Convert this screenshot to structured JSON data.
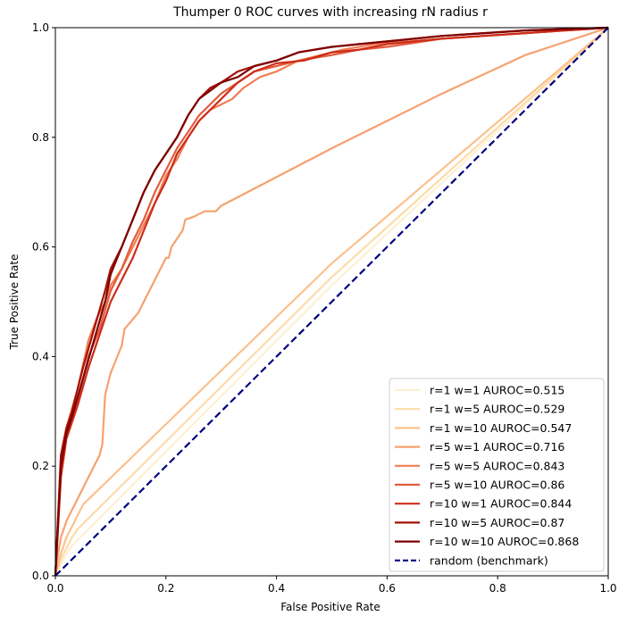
{
  "chart_data": {
    "type": "line",
    "title": "Thumper 0 ROC curves with increasing rN radius r",
    "xlabel": "False Positive Rate",
    "ylabel": "True Positive Rate",
    "xlim": [
      0.0,
      1.0
    ],
    "ylim": [
      0.0,
      1.0
    ],
    "x_ticks": [
      "0.0",
      "0.2",
      "0.4",
      "0.6",
      "0.8",
      "1.0"
    ],
    "y_ticks": [
      "0.0",
      "0.2",
      "0.4",
      "0.6",
      "0.8",
      "1.0"
    ],
    "grid": false,
    "legend_position": "lower-right",
    "series": [
      {
        "name": "r=1 w=1 AUROC=0.515",
        "color": "#fff0d4",
        "points": [
          [
            0,
            0
          ],
          [
            0.01,
            0.02
          ],
          [
            0.02,
            0.04
          ],
          [
            0.03,
            0.055
          ],
          [
            0.04,
            0.065
          ],
          [
            0.5,
            0.53
          ],
          [
            1,
            1
          ]
        ]
      },
      {
        "name": "r=1 w=5 AUROC=0.529",
        "color": "#fcdca8",
        "points": [
          [
            0,
            0
          ],
          [
            0.01,
            0.03
          ],
          [
            0.02,
            0.05
          ],
          [
            0.03,
            0.07
          ],
          [
            0.04,
            0.085
          ],
          [
            0.5,
            0.545
          ],
          [
            1,
            1
          ]
        ]
      },
      {
        "name": "r=1 w=10 AUROC=0.547",
        "color": "#fbc18d",
        "points": [
          [
            0,
            0
          ],
          [
            0.01,
            0.04
          ],
          [
            0.02,
            0.07
          ],
          [
            0.03,
            0.09
          ],
          [
            0.05,
            0.13
          ],
          [
            0.5,
            0.57
          ],
          [
            1,
            1
          ]
        ]
      },
      {
        "name": "r=5 w=1 AUROC=0.716",
        "color": "#f6a16f",
        "points": [
          [
            0,
            0
          ],
          [
            0.005,
            0.04
          ],
          [
            0.01,
            0.07
          ],
          [
            0.02,
            0.1
          ],
          [
            0.04,
            0.14
          ],
          [
            0.06,
            0.18
          ],
          [
            0.08,
            0.22
          ],
          [
            0.085,
            0.24
          ],
          [
            0.09,
            0.33
          ],
          [
            0.1,
            0.37
          ],
          [
            0.12,
            0.42
          ],
          [
            0.125,
            0.45
          ],
          [
            0.15,
            0.48
          ],
          [
            0.17,
            0.52
          ],
          [
            0.19,
            0.56
          ],
          [
            0.2,
            0.58
          ],
          [
            0.205,
            0.58
          ],
          [
            0.21,
            0.6
          ],
          [
            0.23,
            0.63
          ],
          [
            0.235,
            0.65
          ],
          [
            0.25,
            0.655
          ],
          [
            0.27,
            0.665
          ],
          [
            0.29,
            0.665
          ],
          [
            0.3,
            0.675
          ],
          [
            0.5,
            0.78
          ],
          [
            0.7,
            0.88
          ],
          [
            0.85,
            0.95
          ],
          [
            1,
            1
          ]
        ]
      },
      {
        "name": "r=5 w=5 AUROC=0.843",
        "color": "#f17d53",
        "points": [
          [
            0,
            0
          ],
          [
            0.01,
            0.22
          ],
          [
            0.02,
            0.27
          ],
          [
            0.04,
            0.34
          ],
          [
            0.06,
            0.43
          ],
          [
            0.075,
            0.47
          ],
          [
            0.09,
            0.5
          ],
          [
            0.1,
            0.53
          ],
          [
            0.12,
            0.56
          ],
          [
            0.14,
            0.6
          ],
          [
            0.16,
            0.64
          ],
          [
            0.18,
            0.68
          ],
          [
            0.2,
            0.73
          ],
          [
            0.22,
            0.76
          ],
          [
            0.24,
            0.8
          ],
          [
            0.26,
            0.83
          ],
          [
            0.28,
            0.85
          ],
          [
            0.3,
            0.86
          ],
          [
            0.32,
            0.87
          ],
          [
            0.34,
            0.89
          ],
          [
            0.37,
            0.91
          ],
          [
            0.4,
            0.92
          ],
          [
            0.44,
            0.94
          ],
          [
            0.48,
            0.95
          ],
          [
            0.52,
            0.96
          ],
          [
            0.58,
            0.97
          ],
          [
            0.7,
            0.98
          ],
          [
            0.85,
            0.99
          ],
          [
            1,
            1
          ]
        ]
      },
      {
        "name": "r=5 w=10 AUROC=0.86",
        "color": "#e25c3d",
        "points": [
          [
            0,
            0
          ],
          [
            0.01,
            0.2
          ],
          [
            0.02,
            0.26
          ],
          [
            0.04,
            0.32
          ],
          [
            0.06,
            0.4
          ],
          [
            0.08,
            0.45
          ],
          [
            0.1,
            0.52
          ],
          [
            0.12,
            0.56
          ],
          [
            0.14,
            0.61
          ],
          [
            0.16,
            0.65
          ],
          [
            0.18,
            0.7
          ],
          [
            0.2,
            0.74
          ],
          [
            0.22,
            0.78
          ],
          [
            0.24,
            0.81
          ],
          [
            0.26,
            0.84
          ],
          [
            0.28,
            0.86
          ],
          [
            0.3,
            0.88
          ],
          [
            0.33,
            0.9
          ],
          [
            0.36,
            0.92
          ],
          [
            0.4,
            0.93
          ],
          [
            0.44,
            0.94
          ],
          [
            0.5,
            0.95
          ],
          [
            0.55,
            0.96
          ],
          [
            0.6,
            0.965
          ],
          [
            0.7,
            0.98
          ],
          [
            0.85,
            0.99
          ],
          [
            1,
            1
          ]
        ]
      },
      {
        "name": "r=10 w=1 AUROC=0.844",
        "color": "#cc2c1a",
        "points": [
          [
            0,
            0
          ],
          [
            0.01,
            0.18
          ],
          [
            0.02,
            0.25
          ],
          [
            0.04,
            0.31
          ],
          [
            0.06,
            0.38
          ],
          [
            0.08,
            0.44
          ],
          [
            0.1,
            0.5
          ],
          [
            0.12,
            0.54
          ],
          [
            0.14,
            0.58
          ],
          [
            0.16,
            0.63
          ],
          [
            0.18,
            0.68
          ],
          [
            0.2,
            0.72
          ],
          [
            0.22,
            0.77
          ],
          [
            0.24,
            0.8
          ],
          [
            0.26,
            0.83
          ],
          [
            0.28,
            0.85
          ],
          [
            0.3,
            0.87
          ],
          [
            0.33,
            0.9
          ],
          [
            0.36,
            0.92
          ],
          [
            0.4,
            0.935
          ],
          [
            0.45,
            0.94
          ],
          [
            0.5,
            0.955
          ],
          [
            0.55,
            0.96
          ],
          [
            0.6,
            0.97
          ],
          [
            0.7,
            0.98
          ],
          [
            0.85,
            0.99
          ],
          [
            1,
            1
          ]
        ]
      },
      {
        "name": "r=10 w=5 AUROC=0.87",
        "color": "#a50f04",
        "points": [
          [
            0,
            0
          ],
          [
            0.01,
            0.22
          ],
          [
            0.02,
            0.27
          ],
          [
            0.03,
            0.3
          ],
          [
            0.05,
            0.38
          ],
          [
            0.07,
            0.45
          ],
          [
            0.09,
            0.52
          ],
          [
            0.1,
            0.56
          ],
          [
            0.12,
            0.6
          ],
          [
            0.14,
            0.65
          ],
          [
            0.16,
            0.7
          ],
          [
            0.18,
            0.74
          ],
          [
            0.2,
            0.77
          ],
          [
            0.22,
            0.8
          ],
          [
            0.24,
            0.84
          ],
          [
            0.26,
            0.87
          ],
          [
            0.28,
            0.89
          ],
          [
            0.3,
            0.9
          ],
          [
            0.33,
            0.92
          ],
          [
            0.36,
            0.93
          ],
          [
            0.4,
            0.94
          ],
          [
            0.44,
            0.955
          ],
          [
            0.5,
            0.965
          ],
          [
            0.55,
            0.97
          ],
          [
            0.6,
            0.975
          ],
          [
            0.7,
            0.985
          ],
          [
            0.85,
            0.995
          ],
          [
            1,
            1
          ]
        ]
      },
      {
        "name": "r=10 w=10 AUROC=0.868",
        "color": "#7f0000",
        "points": [
          [
            0,
            0
          ],
          [
            0.01,
            0.2
          ],
          [
            0.02,
            0.26
          ],
          [
            0.03,
            0.29
          ],
          [
            0.05,
            0.36
          ],
          [
            0.07,
            0.43
          ],
          [
            0.09,
            0.5
          ],
          [
            0.1,
            0.55
          ],
          [
            0.12,
            0.6
          ],
          [
            0.14,
            0.65
          ],
          [
            0.16,
            0.7
          ],
          [
            0.18,
            0.74
          ],
          [
            0.2,
            0.77
          ],
          [
            0.22,
            0.8
          ],
          [
            0.24,
            0.84
          ],
          [
            0.26,
            0.87
          ],
          [
            0.28,
            0.885
          ],
          [
            0.3,
            0.9
          ],
          [
            0.33,
            0.91
          ],
          [
            0.36,
            0.93
          ],
          [
            0.4,
            0.94
          ],
          [
            0.44,
            0.955
          ],
          [
            0.5,
            0.965
          ],
          [
            0.55,
            0.97
          ],
          [
            0.6,
            0.975
          ],
          [
            0.7,
            0.985
          ],
          [
            0.85,
            0.995
          ],
          [
            1,
            1
          ]
        ]
      },
      {
        "name": "random (benchmark)",
        "color": "#000080",
        "dashed": true,
        "points": [
          [
            0,
            0
          ],
          [
            1,
            1
          ]
        ]
      }
    ]
  }
}
